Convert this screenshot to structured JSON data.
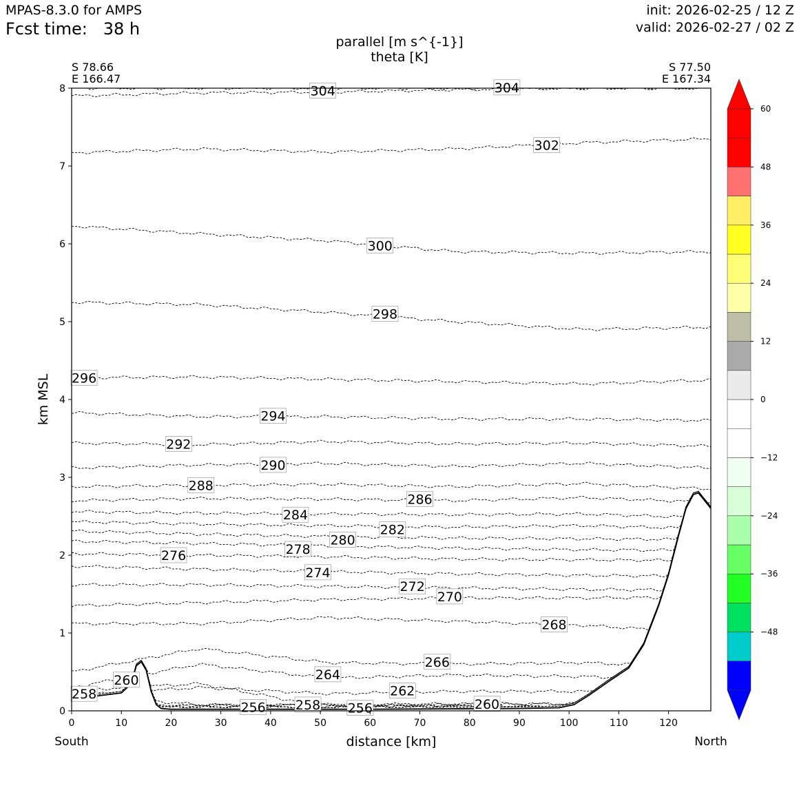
{
  "header": {
    "model": "MPAS-8.3.0 for AMPS",
    "fcst_time": "Fcst time:   38 h",
    "init": "init: 2026-02-25 / 12 Z",
    "valid": "valid: 2026-02-27 / 02 Z"
  },
  "chart_data": {
    "type": "contour",
    "title": "parallel [m s^{-1}]",
    "subtitle": "theta [K]",
    "xlabel": "distance [km]",
    "ylabel": "km MSL",
    "xlim": [
      0,
      128.5
    ],
    "ylim": [
      0,
      8
    ],
    "xticks": [
      "0",
      "10",
      "20",
      "30",
      "40",
      "50",
      "60",
      "70",
      "80",
      "90",
      "100",
      "110",
      "120"
    ],
    "yticks": [
      "0",
      "1",
      "2",
      "3",
      "4",
      "5",
      "6",
      "7",
      "8"
    ],
    "left_end": {
      "label": "South",
      "lat": "S 78.66",
      "lon": "E 166.47"
    },
    "right_end": {
      "label": "North",
      "lat": "S 77.50",
      "lon": "E 167.34"
    },
    "terrain": {
      "x": [
        0,
        5,
        10,
        12,
        13,
        14,
        15,
        16,
        17,
        18,
        20,
        30,
        60,
        90,
        98,
        101,
        104,
        108,
        112,
        115,
        118,
        120,
        122,
        123.5,
        125,
        126,
        127,
        128.5
      ],
      "y": [
        0.15,
        0.19,
        0.23,
        0.35,
        0.58,
        0.63,
        0.52,
        0.25,
        0.08,
        0.03,
        0.02,
        0.02,
        0.02,
        0.03,
        0.04,
        0.08,
        0.2,
        0.38,
        0.55,
        0.85,
        1.35,
        1.75,
        2.25,
        2.6,
        2.78,
        2.8,
        2.72,
        2.6
      ]
    },
    "theta_contours": [
      {
        "value": 304,
        "y": [
          7.9,
          7.94,
          7.95,
          7.98,
          8.0,
          8.0
        ],
        "label": "304",
        "label_x": 50.5,
        "label_y": 7.97
      },
      {
        "value": 304,
        "y": [
          8.0,
          8.0,
          8.0,
          8.0,
          8.0,
          8.0
        ],
        "label": "304",
        "label_x": 87.5,
        "label_y": 8.01
      },
      {
        "value": 302,
        "y": [
          7.17,
          7.22,
          7.18,
          7.22,
          7.3,
          7.35
        ],
        "label": "302",
        "label_x": 95.5,
        "label_y": 7.27
      },
      {
        "value": 300,
        "y": [
          6.23,
          6.13,
          6.04,
          5.9,
          5.88,
          5.9
        ],
        "label": "300",
        "label_x": 62,
        "label_y": 5.98
      },
      {
        "value": 298,
        "y": [
          5.25,
          5.22,
          5.12,
          5.0,
          4.9,
          4.93
        ],
        "label": "298",
        "label_x": 63,
        "label_y": 5.1
      },
      {
        "value": 296,
        "y": [
          4.28,
          4.29,
          4.26,
          4.23,
          4.2,
          4.25
        ],
        "label": "296",
        "label_x": 2.5,
        "label_y": 4.28
      },
      {
        "value": 294,
        "y": [
          3.83,
          3.78,
          3.78,
          3.75,
          3.75,
          3.73
        ],
        "label": "294",
        "label_x": 40.5,
        "label_y": 3.79
      },
      {
        "value": 292,
        "y": [
          3.44,
          3.42,
          3.46,
          3.43,
          3.44,
          3.4
        ],
        "label": "292",
        "label_x": 21.5,
        "label_y": 3.43
      },
      {
        "value": 290,
        "y": [
          3.12,
          3.16,
          3.18,
          3.14,
          3.18,
          3.12
        ],
        "label": "290",
        "label_x": 40.5,
        "label_y": 3.16
      },
      {
        "value": 288,
        "y": [
          2.88,
          2.9,
          2.91,
          2.88,
          2.92,
          2.85
        ],
        "label": "288",
        "label_x": 26,
        "label_y": 2.9
      },
      {
        "value": 286,
        "y": [
          2.7,
          2.73,
          2.72,
          2.7,
          2.74,
          2.68
        ],
        "label": "286",
        "label_x": 70,
        "label_y": 2.72
      },
      {
        "value": 284,
        "y": [
          2.56,
          2.54,
          2.53,
          2.52,
          2.53,
          2.48
        ],
        "label": "284",
        "label_x": 45,
        "label_y": 2.52
      },
      {
        "value": 282,
        "y": [
          2.43,
          2.4,
          2.38,
          2.36,
          2.38,
          2.34
        ],
        "label": "282",
        "label_x": 64.5,
        "label_y": 2.33
      },
      {
        "value": 280,
        "y": [
          2.31,
          2.27,
          2.24,
          2.22,
          2.21,
          2.2
        ],
        "label": "280",
        "label_x": 54.5,
        "label_y": 2.2
      },
      {
        "value": 278,
        "y": [
          2.18,
          2.15,
          2.12,
          2.09,
          2.07,
          2.06
        ],
        "label": "278",
        "label_x": 45.5,
        "label_y": 2.08
      },
      {
        "value": 276,
        "y": [
          2.02,
          2.0,
          1.98,
          1.95,
          1.94,
          1.93
        ],
        "label": "276",
        "label_x": 20.5,
        "label_y": 2.0
      },
      {
        "value": 274,
        "y": [
          1.86,
          1.82,
          1.79,
          1.76,
          1.74,
          1.73
        ],
        "label": "274",
        "label_x": 49.5,
        "label_y": 1.78
      },
      {
        "value": 272,
        "y": [
          1.62,
          1.62,
          1.6,
          1.58,
          1.56,
          1.55
        ],
        "label": "272",
        "label_x": 68.5,
        "label_y": 1.6
      },
      {
        "value": 270,
        "y": [
          1.35,
          1.39,
          1.43,
          1.45,
          1.45,
          1.46
        ],
        "label": "270",
        "label_x": 76,
        "label_y": 1.47
      },
      {
        "value": 268,
        "y": [
          1.12,
          1.12,
          1.2,
          1.15,
          1.1,
          1.0
        ],
        "label": "268",
        "label_x": 97,
        "label_y": 1.11
      },
      {
        "value": 266,
        "y": [
          0.5,
          0.8,
          0.62,
          0.6,
          0.62,
          0.55
        ],
        "label": "266",
        "label_x": 73.5,
        "label_y": 0.63
      },
      {
        "value": 264,
        "y": [
          0.3,
          0.6,
          0.42,
          0.46,
          0.44,
          0.4
        ],
        "label": "264",
        "label_x": 51.5,
        "label_y": 0.47
      },
      {
        "value": 262,
        "y": [
          0.2,
          0.3,
          0.22,
          0.25,
          0.25,
          0.2
        ],
        "label": "262",
        "label_x": 66.5,
        "label_y": 0.26
      },
      {
        "value": 260,
        "y": [
          0.26,
          0.35,
          0.05,
          0.08,
          0.09,
          0.06
        ],
        "label": "260",
        "label_x": 11,
        "label_y": 0.4
      },
      {
        "value": 260,
        "y": [
          0.05,
          0.07,
          0.08,
          0.09,
          0.09,
          0.06
        ],
        "label": "260",
        "label_x": 83.5,
        "label_y": 0.09
      },
      {
        "value": 258,
        "y": [
          0.2,
          0.08,
          0.07,
          0.06,
          0.05,
          0.04
        ],
        "label": "258",
        "label_x": 2.5,
        "label_y": 0.22
      },
      {
        "value": 258,
        "y": [
          0.05,
          0.07,
          0.08,
          0.07,
          0.05,
          0.03
        ],
        "label": "258",
        "label_x": 47.5,
        "label_y": 0.08
      },
      {
        "value": 256,
        "y": [
          0.04,
          0.05,
          0.05,
          0.05,
          0.04,
          0.03
        ],
        "label": "256",
        "label_x": 36.5,
        "label_y": 0.05
      },
      {
        "value": 256,
        "y": [
          0.04,
          0.05,
          0.05,
          0.05,
          0.04,
          0.03
        ],
        "label": "256",
        "label_x": 58,
        "label_y": 0.04
      }
    ],
    "colorbar": {
      "levels": [
        -60,
        -54,
        -48,
        -42,
        -36,
        -30,
        -24,
        -18,
        -12,
        -6,
        0,
        6,
        12,
        18,
        24,
        30,
        36,
        42,
        48,
        54,
        60
      ],
      "colors": [
        "#0000ff",
        "#00cccc",
        "#00e060",
        "#22ff22",
        "#66ff66",
        "#aaffaa",
        "#d8ffd8",
        "#f0fff0",
        "#ffffff",
        "#ffffff",
        "#ebebeb",
        "#aaaaaa",
        "#bebea8",
        "#ffffaa",
        "#ffff77",
        "#ffff22",
        "#ffee66",
        "#ff7070",
        "#ff0000",
        "#ff0000"
      ],
      "under_color": "#0000ff",
      "over_color": "#ff0000",
      "tick_values": [
        -48,
        -36,
        -24,
        -12,
        0,
        12,
        24,
        36,
        48,
        60
      ],
      "tick_labels": [
        "−48",
        "−36",
        "−24",
        "−12",
        "0",
        "12",
        "24",
        "36",
        "48",
        "60"
      ]
    }
  }
}
